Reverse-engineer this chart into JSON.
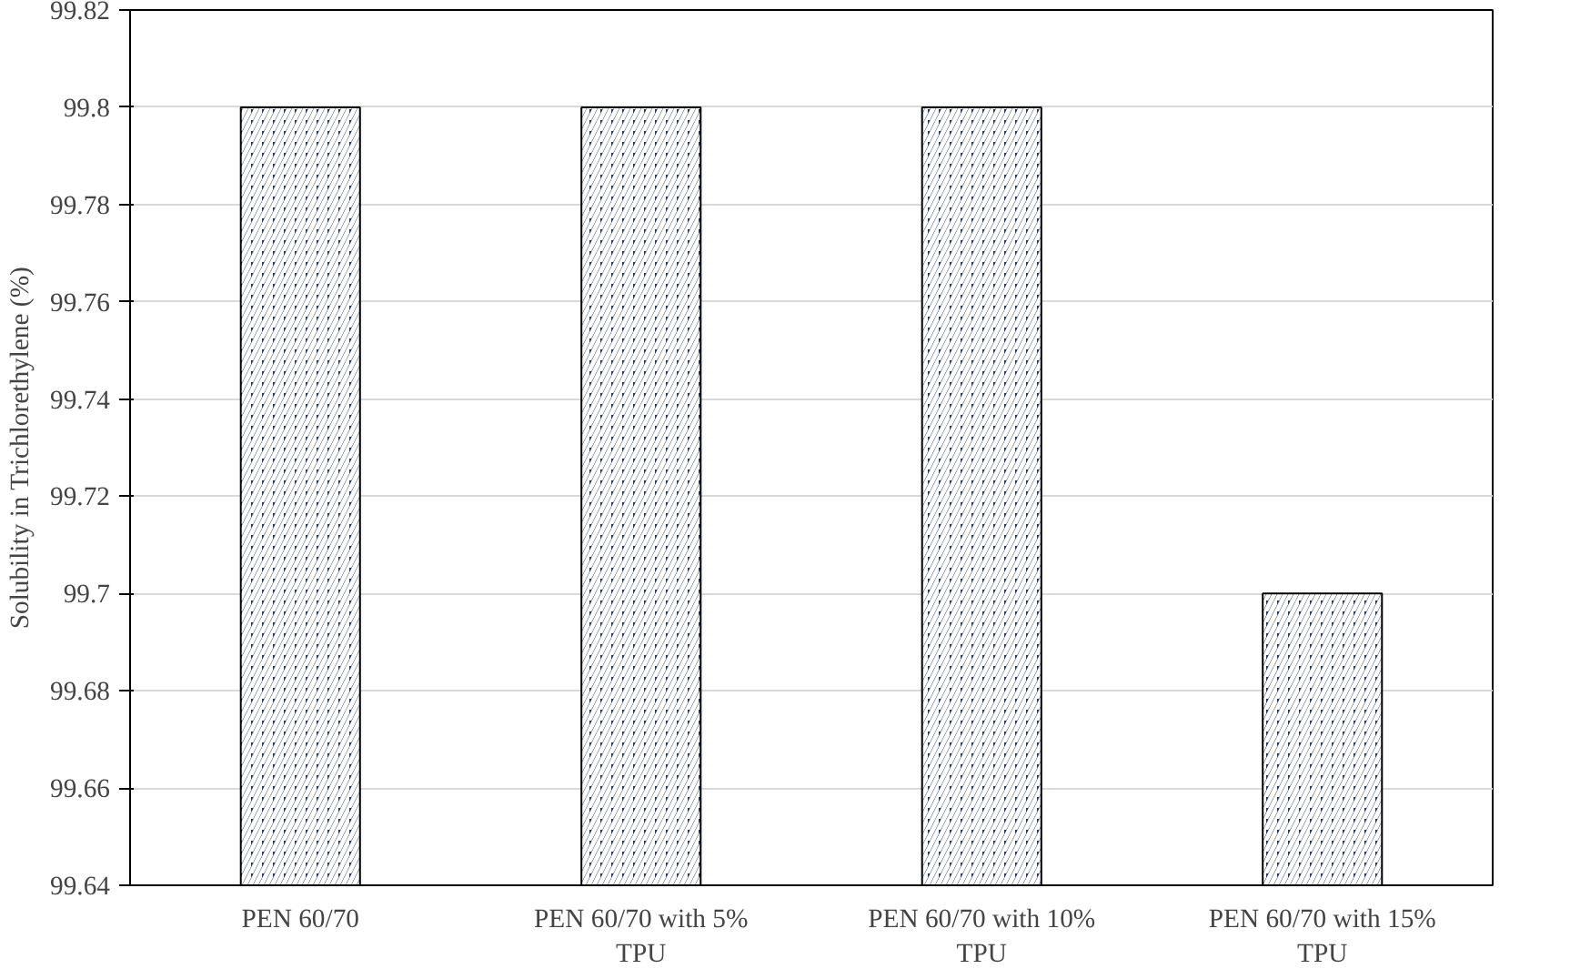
{
  "chart_data": {
    "type": "bar",
    "ylabel": "Solubility in Trichlorethylene (%)",
    "categories": [
      "PEN 60/70",
      "PEN 60/70 with 5% TPU",
      "PEN 60/70 with 10% TPU",
      "PEN 60/70 with 15% TPU"
    ],
    "values": [
      99.8,
      99.8,
      99.8,
      99.7
    ],
    "color": "#1f3864",
    "ylim": [
      99.64,
      99.82
    ],
    "yticks": [
      99.64,
      99.66,
      99.68,
      99.7,
      99.72,
      99.74,
      99.76,
      99.78,
      99.8,
      99.82
    ],
    "grid": "y"
  }
}
